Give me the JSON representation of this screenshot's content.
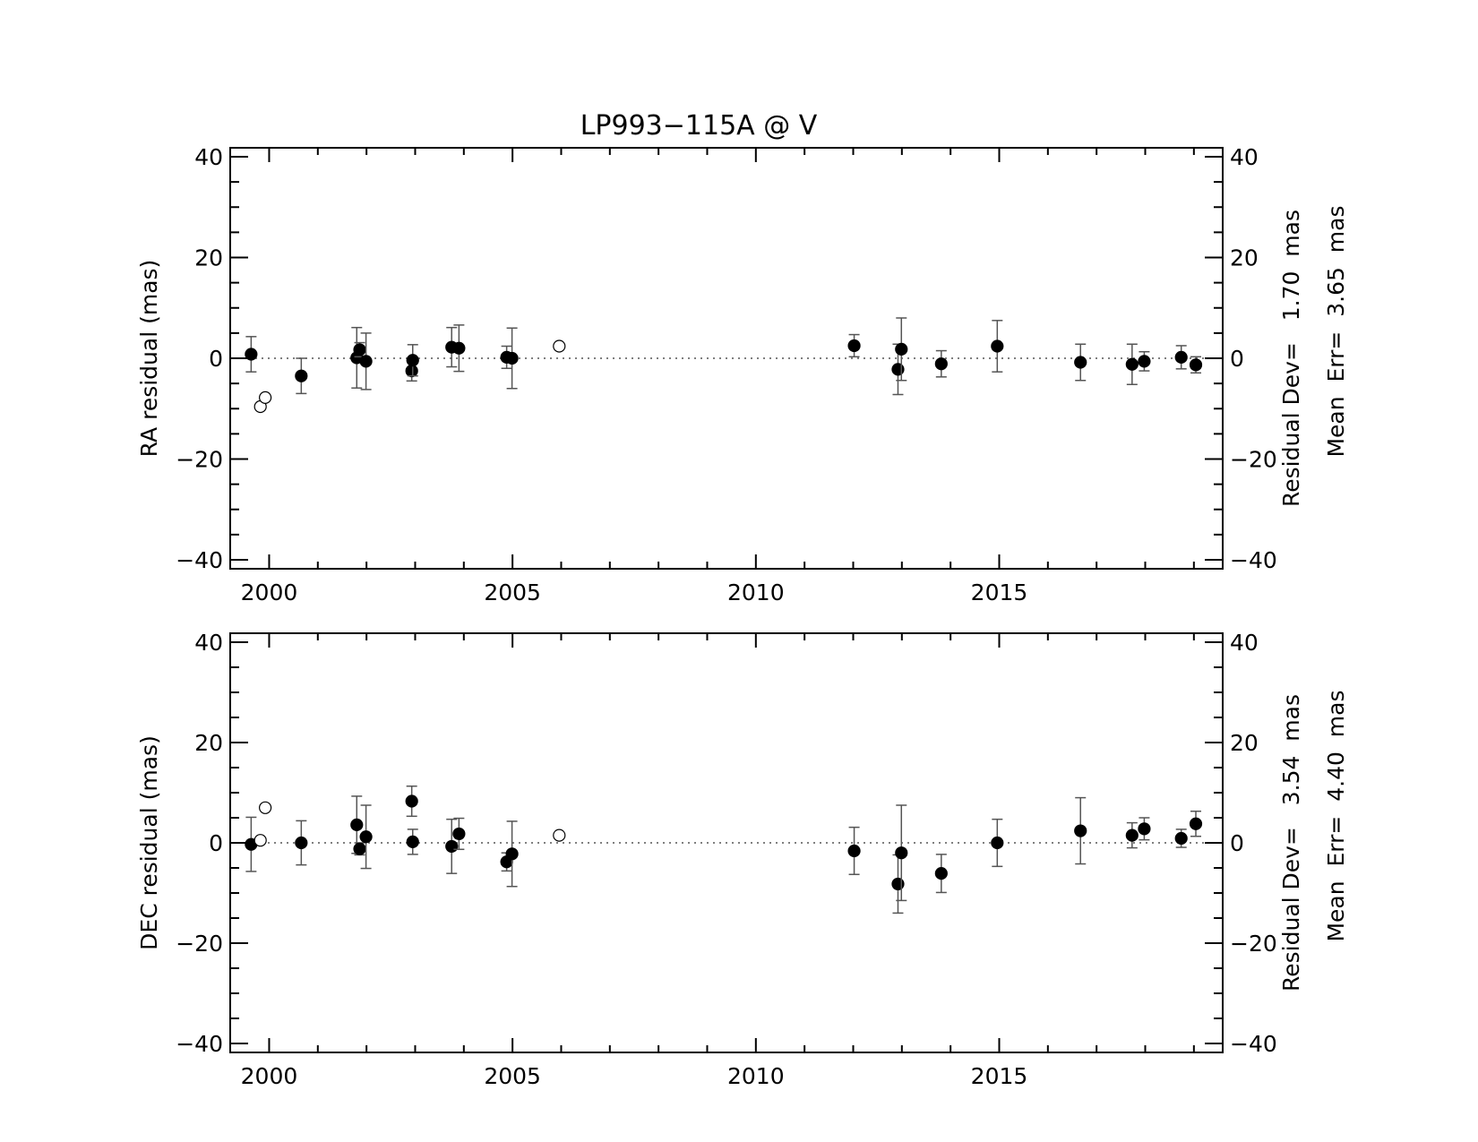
{
  "chart_data": {
    "type": "scatter",
    "title": "LP993−115A @ V",
    "xlim": [
      1999.2,
      2019.5
    ],
    "xticks": [
      2000,
      2005,
      2010,
      2015
    ],
    "xtick_labels": [
      "2000",
      "2005",
      "2010",
      "2015"
    ],
    "ylim": [
      -40,
      40
    ],
    "yticks": [
      -40,
      -20,
      0,
      20,
      40
    ],
    "ytick_labels": [
      "−40",
      "−20",
      "0",
      "20",
      "40"
    ],
    "zero_line": true,
    "panels": [
      {
        "id": "ra",
        "ylabel": "RA residual (mas)",
        "stat_residual_dev": "Residual Dev=   1.70  mas",
        "stat_mean_err": "Mean  Err=  3.65  mas",
        "points": [
          {
            "x": 1999.63,
            "y": 0.8,
            "err": 3.5,
            "filled": true
          },
          {
            "x": 1999.82,
            "y": -9.6,
            "err": null,
            "filled": false
          },
          {
            "x": 1999.92,
            "y": -7.8,
            "err": null,
            "filled": false
          },
          {
            "x": 2000.66,
            "y": -3.5,
            "err": 3.5,
            "filled": true
          },
          {
            "x": 2001.8,
            "y": 0.1,
            "err": 6.0,
            "filled": true
          },
          {
            "x": 2001.86,
            "y": 1.7,
            "err": 1.4,
            "filled": true
          },
          {
            "x": 2001.99,
            "y": -0.6,
            "err": 5.6,
            "filled": true
          },
          {
            "x": 2002.93,
            "y": -2.5,
            "err": 2.0,
            "filled": true
          },
          {
            "x": 2002.95,
            "y": -0.4,
            "err": 3.1,
            "filled": true
          },
          {
            "x": 2003.75,
            "y": 2.2,
            "err": 3.9,
            "filled": true
          },
          {
            "x": 2003.9,
            "y": 2.0,
            "err": 4.6,
            "filled": true
          },
          {
            "x": 2004.88,
            "y": 0.2,
            "err": 2.2,
            "filled": true
          },
          {
            "x": 2004.99,
            "y": 0.0,
            "err": 6.0,
            "filled": true
          },
          {
            "x": 2005.96,
            "y": 2.4,
            "err": null,
            "filled": false
          },
          {
            "x": 2012.02,
            "y": 2.5,
            "err": 2.2,
            "filled": true
          },
          {
            "x": 2012.92,
            "y": -2.2,
            "err": 5.0,
            "filled": true
          },
          {
            "x": 2012.99,
            "y": 1.8,
            "err": 6.2,
            "filled": true
          },
          {
            "x": 2013.81,
            "y": -1.1,
            "err": 2.6,
            "filled": true
          },
          {
            "x": 2014.96,
            "y": 2.4,
            "err": 5.1,
            "filled": true
          },
          {
            "x": 2016.67,
            "y": -0.8,
            "err": 3.6,
            "filled": true
          },
          {
            "x": 2017.73,
            "y": -1.2,
            "err": 4.0,
            "filled": true
          },
          {
            "x": 2017.98,
            "y": -0.6,
            "err": 1.9,
            "filled": true
          },
          {
            "x": 2018.74,
            "y": 0.2,
            "err": 2.3,
            "filled": true
          },
          {
            "x": 2019.04,
            "y": -1.3,
            "err": 1.6,
            "filled": true
          }
        ]
      },
      {
        "id": "dec",
        "ylabel": "DEC residual (mas)",
        "stat_residual_dev": "Residual Dev=   3.54  mas",
        "stat_mean_err": "Mean  Err=  4.40  mas",
        "points": [
          {
            "x": 1999.63,
            "y": -0.3,
            "err": 5.4,
            "filled": true
          },
          {
            "x": 1999.82,
            "y": 0.5,
            "err": null,
            "filled": false
          },
          {
            "x": 1999.92,
            "y": 7.0,
            "err": null,
            "filled": false
          },
          {
            "x": 2000.66,
            "y": 0.0,
            "err": 4.4,
            "filled": true
          },
          {
            "x": 2001.8,
            "y": 3.6,
            "err": 5.7,
            "filled": true
          },
          {
            "x": 2001.86,
            "y": -1.2,
            "err": 1.2,
            "filled": true
          },
          {
            "x": 2001.99,
            "y": 1.2,
            "err": 6.3,
            "filled": true
          },
          {
            "x": 2002.93,
            "y": 8.3,
            "err": 3.0,
            "filled": true
          },
          {
            "x": 2002.95,
            "y": 0.2,
            "err": 2.5,
            "filled": true
          },
          {
            "x": 2003.75,
            "y": -0.7,
            "err": 5.4,
            "filled": true
          },
          {
            "x": 2003.9,
            "y": 1.8,
            "err": 3.1,
            "filled": true
          },
          {
            "x": 2004.88,
            "y": -3.8,
            "err": 1.8,
            "filled": true
          },
          {
            "x": 2004.99,
            "y": -2.2,
            "err": 6.5,
            "filled": true
          },
          {
            "x": 2005.96,
            "y": 1.5,
            "err": null,
            "filled": false
          },
          {
            "x": 2012.02,
            "y": -1.6,
            "err": 4.7,
            "filled": true
          },
          {
            "x": 2012.92,
            "y": -8.2,
            "err": 5.8,
            "filled": true
          },
          {
            "x": 2012.99,
            "y": -2.0,
            "err": 9.5,
            "filled": true
          },
          {
            "x": 2013.81,
            "y": -6.1,
            "err": 3.8,
            "filled": true
          },
          {
            "x": 2014.96,
            "y": 0.0,
            "err": 4.7,
            "filled": true
          },
          {
            "x": 2016.67,
            "y": 2.4,
            "err": 6.6,
            "filled": true
          },
          {
            "x": 2017.73,
            "y": 1.5,
            "err": 2.5,
            "filled": true
          },
          {
            "x": 2017.98,
            "y": 2.8,
            "err": 2.2,
            "filled": true
          },
          {
            "x": 2018.74,
            "y": 0.9,
            "err": 1.8,
            "filled": true
          },
          {
            "x": 2019.04,
            "y": 3.8,
            "err": 2.5,
            "filled": true
          }
        ]
      }
    ]
  }
}
